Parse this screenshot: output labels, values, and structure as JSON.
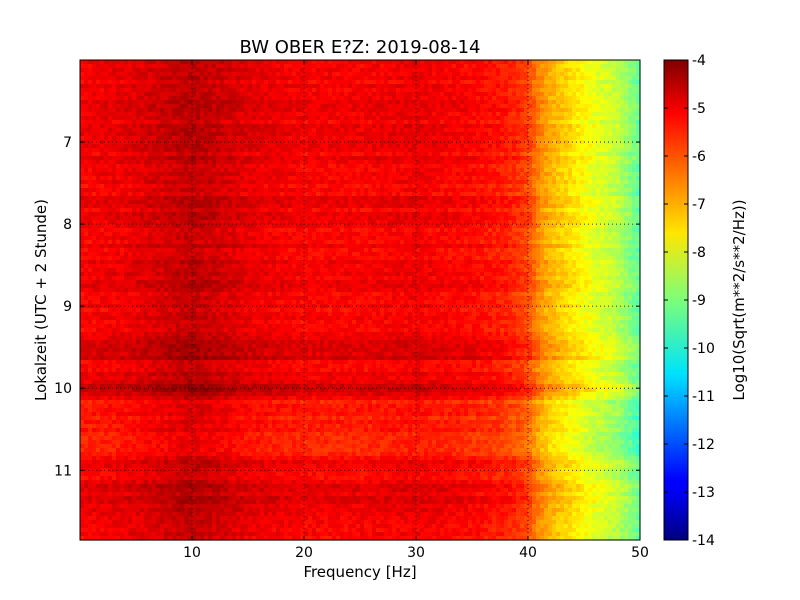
{
  "chart_data": {
    "type": "heatmap",
    "title": "BW OBER E?Z: 2019-08-14",
    "xlabel": "Frequency [Hz]",
    "ylabel": "Lokalzeit (UTC + 2 Stunde)",
    "colorbar_label": "Log10(Sqrt(m**2/s**2/Hz))",
    "xlim": [
      0,
      50
    ],
    "ylim": [
      11.85,
      6.0
    ],
    "y_axis_inverted": true,
    "xticks": [
      "10",
      "20",
      "30",
      "40",
      "50"
    ],
    "yticks": [
      "7",
      "8",
      "9",
      "10",
      "11"
    ],
    "xtick_values": [
      10,
      20,
      30,
      40,
      50
    ],
    "ytick_values": [
      7,
      8,
      9,
      10,
      11
    ],
    "clim": [
      -14,
      -4
    ],
    "colorbar_ticks": [
      "-4",
      "-5",
      "-6",
      "-7",
      "-8",
      "-9",
      "-10",
      "-11",
      "-12",
      "-13",
      "-14"
    ],
    "colorbar_tick_values": [
      -4,
      -5,
      -6,
      -7,
      -8,
      -9,
      -10,
      -11,
      -12,
      -13,
      -14
    ],
    "colormap": "jet",
    "grid": true,
    "frequency_profile": {
      "frequency_hz": [
        0,
        5,
        10,
        15,
        20,
        25,
        30,
        35,
        38,
        40,
        41,
        42,
        44,
        46,
        48,
        50
      ],
      "log10_amplitude": [
        -5.2,
        -5.0,
        -4.6,
        -5.0,
        -5.2,
        -5.2,
        -5.1,
        -5.3,
        -5.5,
        -5.9,
        -6.6,
        -7.0,
        -7.5,
        -8.0,
        -8.4,
        -9.3
      ]
    },
    "dark_time_bands": [
      {
        "time": 9.55,
        "log10_amplitude_offset": 0.3
      },
      {
        "time": 10.0,
        "log10_amplitude_offset": 0.3
      },
      {
        "time": 11.3,
        "log10_amplitude_offset": 0.2
      }
    ],
    "quiet_time_band": {
      "from": 10.1,
      "to": 10.85,
      "log10_amplitude_offset": -0.35
    }
  }
}
